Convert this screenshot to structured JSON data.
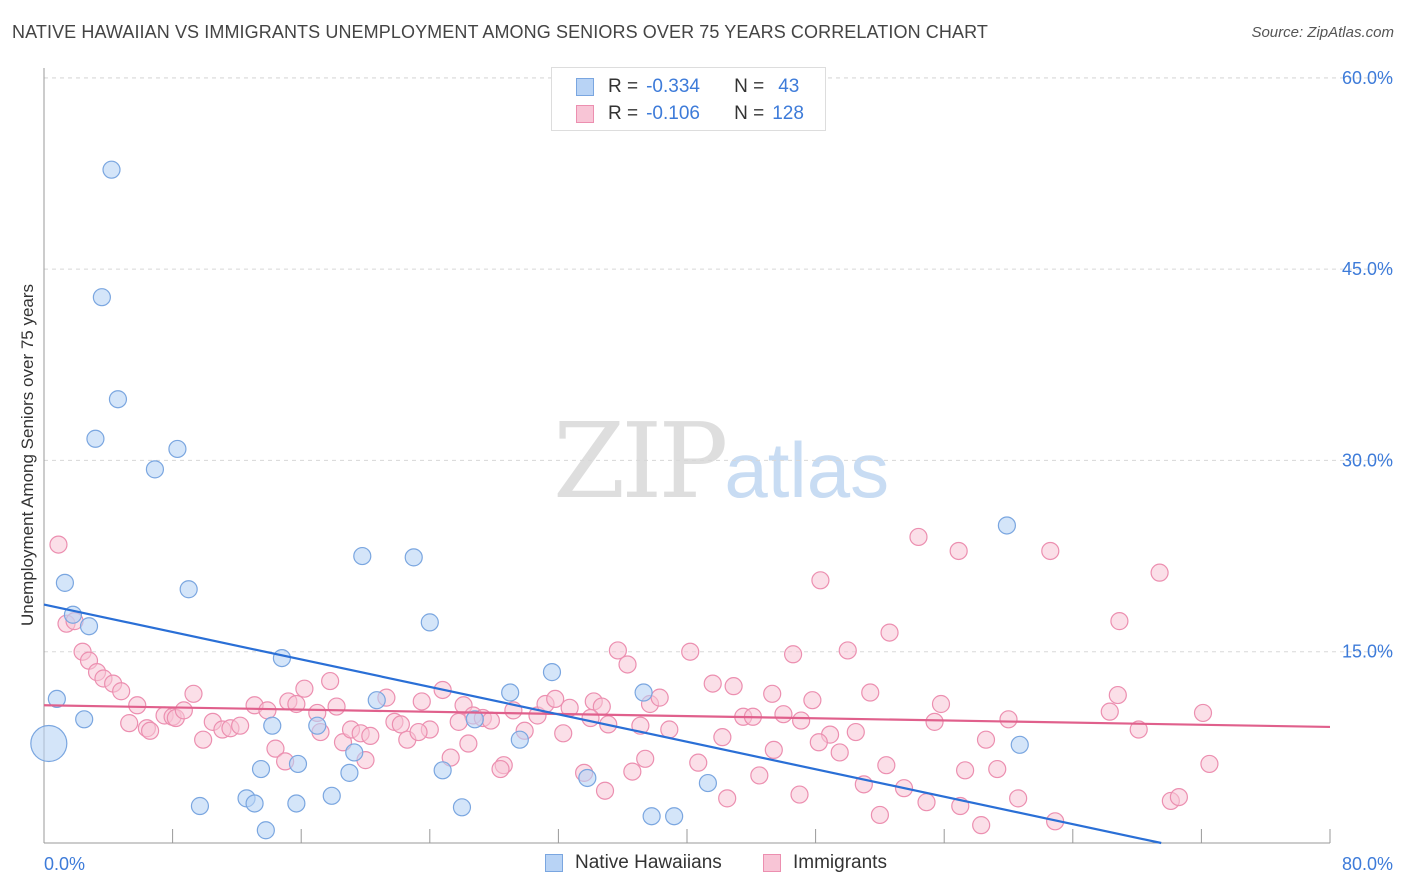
{
  "title": "NATIVE HAWAIIAN VS IMMIGRANTS UNEMPLOYMENT AMONG SENIORS OVER 75 YEARS CORRELATION CHART",
  "source": "Source: ZipAtlas.com",
  "watermark": {
    "zip": "ZIP",
    "atlas": "atlas"
  },
  "legend": {
    "rows": [
      {
        "r_label": "R =",
        "r_value": "-0.334",
        "n_label": "N =",
        "n_value": "43"
      },
      {
        "r_label": "R =",
        "r_value": "-0.106",
        "n_label": "N =",
        "n_value": "128"
      }
    ]
  },
  "colors": {
    "native_fill": "#b8d3f5",
    "native_stroke": "#7aa6e0",
    "native_line": "#2a6fd6",
    "imm_fill": "#f8c5d6",
    "imm_stroke": "#ec8fb0",
    "imm_line": "#e0608c",
    "axis_text": "#3d7bd9",
    "grid": "#d8d8d8"
  },
  "chart_data": {
    "type": "scatter",
    "title": "NATIVE HAWAIIAN VS IMMIGRANTS UNEMPLOYMENT AMONG SENIORS OVER 75 YEARS CORRELATION CHART",
    "xlabel": "",
    "ylabel": "Unemployment Among Seniors over 75 years",
    "xlim": [
      0,
      80
    ],
    "ylim": [
      0,
      60
    ],
    "x_tick_labels": [
      {
        "value": 0,
        "label": "0.0%"
      },
      {
        "value": 80,
        "label": "80.0%"
      }
    ],
    "y_tick_labels": [
      {
        "value": 15,
        "label": "15.0%"
      },
      {
        "value": 30,
        "label": "30.0%"
      },
      {
        "value": 45,
        "label": "45.0%"
      },
      {
        "value": 60,
        "label": "60.0%"
      }
    ],
    "series": [
      {
        "name": "Native Hawaiians",
        "r": -0.334,
        "n": 43,
        "trend": {
          "x": [
            0,
            69.5
          ],
          "y": [
            18.7,
            0
          ]
        },
        "points": [
          [
            4.2,
            52.8
          ],
          [
            3.6,
            42.8
          ],
          [
            4.6,
            34.8
          ],
          [
            3.2,
            31.7
          ],
          [
            8.3,
            30.9
          ],
          [
            6.9,
            29.3
          ],
          [
            1.3,
            20.4
          ],
          [
            1.8,
            17.9
          ],
          [
            2.8,
            17.0
          ],
          [
            9.0,
            19.9
          ],
          [
            19.8,
            22.5
          ],
          [
            23.0,
            22.4
          ],
          [
            24.0,
            17.3
          ],
          [
            14.8,
            14.5
          ],
          [
            2.5,
            9.7
          ],
          [
            0.8,
            11.3
          ],
          [
            0.3,
            7.8
          ],
          [
            14.2,
            9.2
          ],
          [
            17.0,
            9.2
          ],
          [
            19.3,
            7.1
          ],
          [
            20.7,
            11.2
          ],
          [
            26.8,
            9.7
          ],
          [
            29.0,
            11.8
          ],
          [
            29.6,
            8.1
          ],
          [
            31.6,
            13.4
          ],
          [
            33.8,
            5.1
          ],
          [
            37.3,
            11.8
          ],
          [
            41.3,
            4.7
          ],
          [
            37.8,
            2.1
          ],
          [
            39.2,
            2.1
          ],
          [
            59.9,
            24.9
          ],
          [
            60.7,
            7.7
          ],
          [
            13.5,
            5.8
          ],
          [
            15.8,
            6.2
          ],
          [
            19.0,
            5.5
          ],
          [
            24.8,
            5.7
          ],
          [
            9.7,
            2.9
          ],
          [
            12.6,
            3.5
          ],
          [
            13.1,
            3.1
          ],
          [
            15.7,
            3.1
          ],
          [
            17.9,
            3.7
          ],
          [
            26.0,
            2.8
          ],
          [
            13.8,
            1.0
          ]
        ],
        "big_point": [
          0.3,
          7.8
        ]
      },
      {
        "name": "Immigrants",
        "r": -0.106,
        "n": 128,
        "trend": {
          "x": [
            0,
            80
          ],
          "y": [
            10.8,
            9.1
          ]
        },
        "points": [
          [
            0.9,
            23.4
          ],
          [
            1.4,
            17.2
          ],
          [
            1.9,
            17.4
          ],
          [
            2.4,
            15.0
          ],
          [
            2.8,
            14.3
          ],
          [
            3.3,
            13.4
          ],
          [
            3.7,
            12.9
          ],
          [
            4.3,
            12.5
          ],
          [
            4.8,
            11.9
          ],
          [
            5.8,
            10.8
          ],
          [
            5.3,
            9.4
          ],
          [
            6.4,
            9.0
          ],
          [
            6.6,
            8.8
          ],
          [
            7.5,
            10.0
          ],
          [
            8.0,
            9.9
          ],
          [
            8.2,
            9.8
          ],
          [
            8.7,
            10.4
          ],
          [
            9.3,
            11.7
          ],
          [
            9.9,
            8.1
          ],
          [
            10.5,
            9.5
          ],
          [
            11.1,
            8.9
          ],
          [
            11.6,
            9.0
          ],
          [
            12.2,
            9.2
          ],
          [
            13.1,
            10.8
          ],
          [
            13.9,
            10.4
          ],
          [
            14.4,
            7.4
          ],
          [
            15.2,
            11.1
          ],
          [
            15.7,
            10.9
          ],
          [
            16.2,
            12.1
          ],
          [
            17.0,
            10.2
          ],
          [
            17.2,
            8.7
          ],
          [
            17.8,
            12.7
          ],
          [
            18.6,
            7.9
          ],
          [
            19.1,
            8.9
          ],
          [
            19.7,
            8.6
          ],
          [
            20.3,
            8.4
          ],
          [
            21.3,
            11.4
          ],
          [
            21.8,
            9.5
          ],
          [
            22.2,
            9.3
          ],
          [
            22.6,
            8.1
          ],
          [
            23.5,
            11.1
          ],
          [
            24.0,
            8.9
          ],
          [
            24.8,
            12.0
          ],
          [
            25.3,
            6.7
          ],
          [
            26.1,
            10.8
          ],
          [
            26.7,
            10.0
          ],
          [
            27.3,
            9.8
          ],
          [
            27.8,
            9.6
          ],
          [
            28.6,
            6.1
          ],
          [
            29.2,
            10.4
          ],
          [
            29.9,
            8.8
          ],
          [
            30.7,
            10.0
          ],
          [
            31.2,
            10.9
          ],
          [
            31.8,
            11.3
          ],
          [
            32.3,
            8.6
          ],
          [
            32.7,
            10.6
          ],
          [
            33.6,
            5.5
          ],
          [
            34.2,
            11.1
          ],
          [
            34.7,
            10.7
          ],
          [
            35.1,
            9.3
          ],
          [
            35.7,
            15.1
          ],
          [
            36.3,
            14.0
          ],
          [
            36.6,
            5.6
          ],
          [
            37.1,
            9.2
          ],
          [
            37.7,
            10.9
          ],
          [
            38.3,
            11.4
          ],
          [
            38.9,
            8.9
          ],
          [
            40.2,
            15.0
          ],
          [
            40.7,
            6.3
          ],
          [
            41.6,
            12.5
          ],
          [
            42.2,
            8.3
          ],
          [
            42.9,
            12.3
          ],
          [
            43.5,
            9.9
          ],
          [
            44.1,
            9.9
          ],
          [
            44.5,
            5.3
          ],
          [
            45.3,
            11.7
          ],
          [
            46.0,
            10.1
          ],
          [
            46.6,
            14.8
          ],
          [
            47.1,
            9.6
          ],
          [
            47.8,
            11.2
          ],
          [
            48.3,
            20.6
          ],
          [
            48.9,
            8.5
          ],
          [
            49.5,
            7.1
          ],
          [
            50.0,
            15.1
          ],
          [
            50.5,
            8.7
          ],
          [
            51.0,
            4.6
          ],
          [
            51.4,
            11.8
          ],
          [
            52.0,
            2.2
          ],
          [
            52.6,
            16.5
          ],
          [
            53.5,
            4.3
          ],
          [
            54.4,
            24.0
          ],
          [
            54.9,
            3.2
          ],
          [
            55.4,
            9.5
          ],
          [
            55.8,
            10.9
          ],
          [
            56.9,
            22.9
          ],
          [
            57.3,
            5.7
          ],
          [
            58.6,
            8.1
          ],
          [
            59.3,
            5.8
          ],
          [
            60.0,
            9.7
          ],
          [
            60.6,
            3.5
          ],
          [
            62.6,
            22.9
          ],
          [
            62.9,
            1.7
          ],
          [
            66.3,
            10.3
          ],
          [
            66.8,
            11.6
          ],
          [
            68.1,
            8.9
          ],
          [
            69.4,
            21.2
          ],
          [
            70.1,
            3.3
          ],
          [
            70.6,
            3.6
          ],
          [
            72.1,
            10.2
          ],
          [
            72.5,
            6.2
          ],
          [
            58.3,
            1.4
          ],
          [
            26.4,
            7.8
          ],
          [
            34.9,
            4.1
          ],
          [
            15.0,
            6.4
          ],
          [
            20.0,
            6.5
          ],
          [
            25.8,
            9.5
          ],
          [
            42.5,
            3.5
          ],
          [
            48.2,
            7.9
          ],
          [
            28.4,
            5.8
          ],
          [
            37.4,
            6.6
          ],
          [
            52.4,
            6.1
          ],
          [
            23.3,
            8.7
          ],
          [
            18.2,
            10.7
          ],
          [
            34.0,
            9.8
          ],
          [
            66.9,
            17.4
          ],
          [
            57.0,
            2.9
          ],
          [
            45.4,
            7.3
          ],
          [
            47.0,
            3.8
          ]
        ]
      }
    ]
  },
  "bottom_legend": [
    "Native Hawaiians",
    "Immigrants"
  ]
}
